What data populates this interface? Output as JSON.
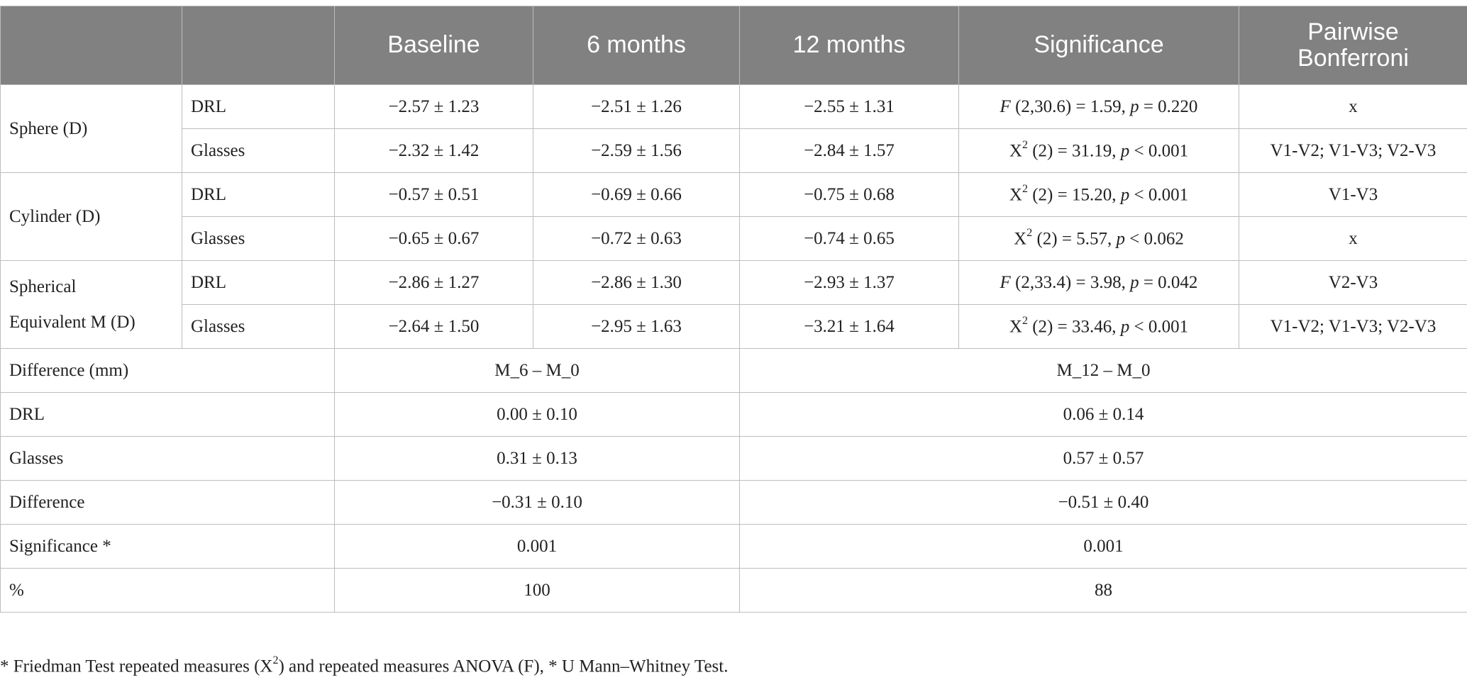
{
  "headers": [
    "",
    "",
    "Baseline",
    "6 months",
    "12 months",
    "Significance",
    "Pairwise Bonferroni"
  ],
  "groups": [
    {
      "label": "Sphere (D)",
      "rows": [
        {
          "method": "DRL",
          "baseline": "−2.57 ± 1.23",
          "m6": "−2.51 ± 1.26",
          "m12": "−2.55 ± 1.31",
          "sig_stat": "F",
          "sig_rest": " (2,30.6) = 1.59, ",
          "sig_p": "p",
          "sig_tail": " = 0.220",
          "pairwise": "x"
        },
        {
          "method": "Glasses",
          "baseline": "−2.32 ± 1.42",
          "m6": "−2.59 ± 1.56",
          "m12": "−2.84 ± 1.57",
          "sig_stat": "X",
          "sig_rest": " (2) = 31.19, ",
          "sig_p": "p",
          "sig_tail": " < 0.001",
          "pairwise": "V1-V2; V1-V3; V2-V3"
        }
      ]
    },
    {
      "label": "Cylinder (D)",
      "rows": [
        {
          "method": "DRL",
          "baseline": "−0.57 ± 0.51",
          "m6": "−0.69 ± 0.66",
          "m12": "−0.75 ± 0.68",
          "sig_stat": "X",
          "sig_rest": " (2) = 15.20, ",
          "sig_p": "p",
          "sig_tail": " < 0.001",
          "pairwise": "V1-V3"
        },
        {
          "method": "Glasses",
          "baseline": "−0.65 ± 0.67",
          "m6": "−0.72 ± 0.63",
          "m12": "−0.74 ± 0.65",
          "sig_stat": "X",
          "sig_rest": " (2) = 5.57, ",
          "sig_p": "p",
          "sig_tail": " < 0.062",
          "pairwise": "x"
        }
      ]
    },
    {
      "label_line1": "Spherical",
      "label_line2": "Equivalent M (D)",
      "rows": [
        {
          "method": "DRL",
          "baseline": "−2.86 ± 1.27",
          "m6": "−2.86 ± 1.30",
          "m12": "−2.93 ± 1.37",
          "sig_stat": "F",
          "sig_rest": " (2,33.4) = 3.98, ",
          "sig_p": "p",
          "sig_tail": " = 0.042",
          "pairwise": "V2-V3"
        },
        {
          "method": "Glasses",
          "baseline": "−2.64 ± 1.50",
          "m6": "−2.95 ± 1.63",
          "m12": "−3.21 ± 1.64",
          "sig_stat": "X",
          "sig_rest": " (2) = 33.46, ",
          "sig_p": "p",
          "sig_tail": " < 0.001",
          "pairwise": "V1-V2; V1-V3; V2-V3"
        }
      ]
    }
  ],
  "sup2": "2",
  "difference_section": [
    {
      "label": "Difference (mm)",
      "col6": "M_6 – M_0",
      "col12": "M_12 – M_0"
    },
    {
      "label": "DRL",
      "col6": "0.00 ± 0.10",
      "col12": "0.06 ± 0.14"
    },
    {
      "label": "Glasses",
      "col6": "0.31 ± 0.13",
      "col12": "0.57 ± 0.57"
    },
    {
      "label": "Difference",
      "col6": "−0.31 ± 0.10",
      "col12": "−0.51 ± 0.40"
    },
    {
      "label": "Significance *",
      "col6": "0.001",
      "col12": "0.001"
    },
    {
      "label": "%",
      "col6": "100",
      "col12": "88"
    }
  ],
  "footnote": {
    "part1": "* Friedman Test repeated measures (X",
    "sup": "2",
    "part2": ") and repeated measures ANOVA (F), * U Mann–Whitney Test."
  }
}
